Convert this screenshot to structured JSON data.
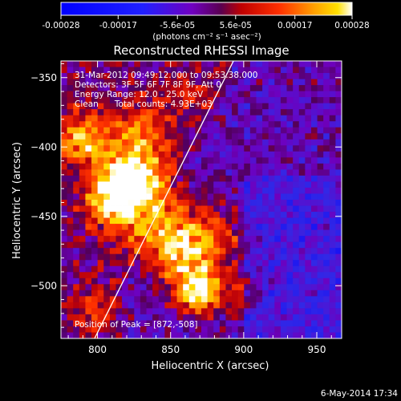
{
  "colorbar": {
    "tick_labels": [
      "-0.00028",
      "-0.00017",
      "-5.6e-05",
      "5.6e-05",
      "0.00017",
      "0.00028"
    ],
    "range": [
      -0.00028,
      0.00028
    ],
    "units_label": "(photons cm⁻² s⁻¹ asec⁻²)"
  },
  "footer": {
    "date_stamp": "6-May-2014 17:34"
  },
  "chart_data": {
    "type": "heatmap",
    "title": "Reconstructed RHESSI Image",
    "xlabel": "Heliocentric X (arcsec)",
    "ylabel": "Heliocentric Y (arcsec)",
    "xlim": [
      775,
      967
    ],
    "ylim": [
      -538,
      -338
    ],
    "x_ticks": [
      800,
      850,
      900,
      950
    ],
    "y_ticks": [
      -350,
      -400,
      -450,
      -500
    ],
    "x_tick_labels": [
      "800",
      "850",
      "900",
      "950"
    ],
    "y_tick_labels": [
      "−350",
      "−400",
      "−450",
      "−500"
    ],
    "annotations": [
      "31-Mar-2012 09:49:12.000 to 09:53:38.000",
      "Detectors: 3F 5F 6F 7F 8F 9F, Att 0",
      "Energy Range: 12.0 - 25.0 keV",
      "Clean      Total counts: 4.93E+03"
    ],
    "peak_label": "Position of Peak = [872,-508]",
    "peak_position": [
      872,
      -508
    ],
    "limb_line": {
      "from": [
        798,
        -538
      ],
      "to": [
        893,
        -338
      ]
    },
    "grid": false,
    "colormap": "rhessi red-temperature (blue negative, purple zero, yellow-white positive)"
  }
}
